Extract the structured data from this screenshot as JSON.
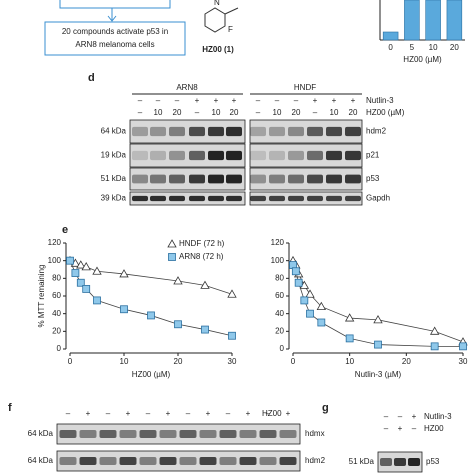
{
  "top": {
    "box_text_1": "20 compounds activate p53 in",
    "box_text_2": "ARN8 melanoma cells",
    "compound": "HZ00 (1)"
  },
  "panel_d": {
    "label": "d",
    "cell_lines": [
      "ARN8",
      "HNDF"
    ],
    "nutlin_row": {
      "label": "Nutlin-3",
      "lanes": [
        "–",
        "–",
        "–",
        "+",
        "+",
        "+",
        "–",
        "–",
        "–",
        "+",
        "+",
        "+"
      ]
    },
    "hz_row": {
      "label": "HZ00 (µM)",
      "lanes": [
        "–",
        "10",
        "20",
        "–",
        "10",
        "20",
        "–",
        "10",
        "20",
        "–",
        "10",
        "20"
      ]
    },
    "rows": [
      {
        "kda": "64 kDa",
        "protein": "hdm2"
      },
      {
        "kda": "19 kDa",
        "protein": "p21"
      },
      {
        "kda": "51 kDa",
        "protein": "p53"
      },
      {
        "kda": "39 kDa",
        "protein": "Gapdh"
      }
    ]
  },
  "panel_e": {
    "label": "e"
  },
  "panel_f": {
    "label": "f",
    "hz_row": {
      "label": "HZ00",
      "lanes": [
        "–",
        "+",
        "–",
        "+",
        "–",
        "+",
        "–",
        "+",
        "–",
        "+",
        "–",
        "+"
      ]
    },
    "rows": [
      {
        "kda": "64 kDa",
        "protein": "hdmx"
      },
      {
        "kda": "64 kDa",
        "protein": "hdm2"
      }
    ]
  },
  "panel_g": {
    "label": "g",
    "nutlin_row": {
      "label": "Nutlin-3",
      "lanes": [
        "–",
        "–",
        "+"
      ]
    },
    "hz_row": {
      "label": "HZ00",
      "lanes": [
        "–",
        "+",
        "–"
      ]
    },
    "rows": [
      {
        "kda": "51 kDa",
        "protein": "p53"
      }
    ]
  },
  "chart_data": [
    {
      "type": "bar",
      "categories": [
        "0",
        "5",
        "10",
        "20"
      ],
      "values": [
        1,
        5,
        5,
        5
      ],
      "color": "#5aa9dc",
      "ylim": [
        0,
        5
      ],
      "x_label": "HZ00 (µM)"
    },
    {
      "type": "line",
      "x_label": "HZ00 (µM)",
      "y_label": "% MTT remaining",
      "xlim": [
        0,
        30
      ],
      "xticks": [
        0,
        10,
        20,
        30
      ],
      "ylim": [
        0,
        120
      ],
      "yticks": [
        0,
        20,
        40,
        60,
        80,
        100,
        120
      ],
      "series": [
        {
          "name": "HNDF (72 h)",
          "color": "#ffffff",
          "marker": "triangle",
          "x": [
            0,
            1,
            2,
            3,
            5,
            10,
            20,
            25,
            30
          ],
          "values": [
            100,
            97,
            95,
            93,
            88,
            85,
            77,
            72,
            62
          ]
        },
        {
          "name": "ARN8 (72 h)",
          "color": "#8fc8ea",
          "marker": "square",
          "x": [
            0,
            1,
            2,
            3,
            5,
            10,
            15,
            20,
            25,
            30
          ],
          "values": [
            100,
            86,
            75,
            68,
            55,
            45,
            38,
            28,
            22,
            15
          ]
        }
      ]
    },
    {
      "type": "line",
      "x_label": "Nutlin-3 (µM)",
      "xlim": [
        0,
        30
      ],
      "xticks": [
        0,
        10,
        20,
        30
      ],
      "ylim": [
        0,
        120
      ],
      "yticks": [
        0,
        20,
        40,
        60,
        80,
        100,
        120
      ],
      "series": [
        {
          "color": "#ffffff",
          "marker": "triangle",
          "x": [
            0,
            0.5,
            1,
            2,
            3,
            5,
            10,
            15,
            25,
            30
          ],
          "values": [
            100,
            95,
            85,
            72,
            62,
            48,
            35,
            33,
            20,
            8
          ]
        },
        {
          "color": "#8fc8ea",
          "marker": "square",
          "x": [
            0,
            0.5,
            1,
            2,
            3,
            5,
            10,
            15,
            25,
            30
          ],
          "values": [
            95,
            88,
            75,
            55,
            40,
            30,
            12,
            5,
            3,
            3
          ]
        }
      ]
    }
  ]
}
